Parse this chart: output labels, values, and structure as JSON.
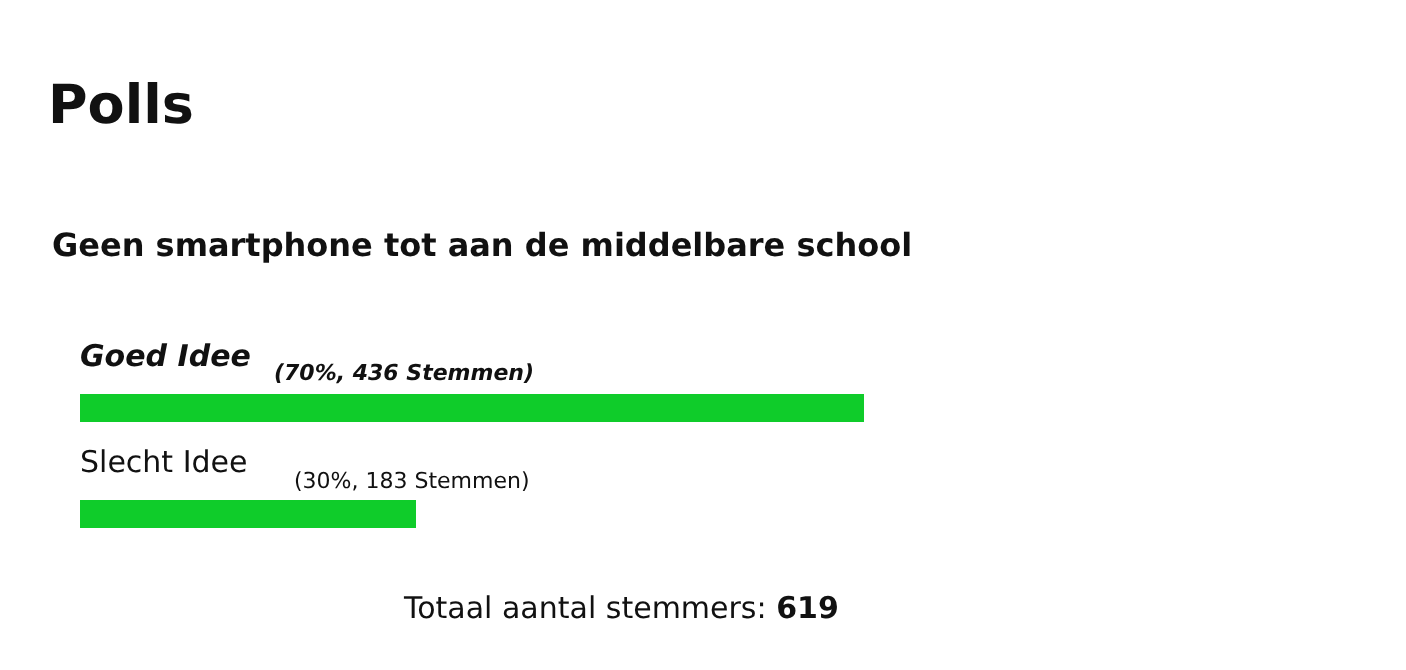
{
  "chart_data": {
    "type": "bar",
    "orientation": "horizontal",
    "title": "Polls",
    "subtitle": "Geen smartphone tot aan de middelbare school",
    "categories": [
      "Goed Idee",
      "Slecht Idee"
    ],
    "values": [
      70,
      30
    ],
    "value_labels": [
      "(70%, 436 Stemmen)",
      "(30%, 183 Stemmen)"
    ],
    "color": "#0fcc2a",
    "annotations": [
      "Totaal aantal stemmers: 619"
    ]
  }
}
